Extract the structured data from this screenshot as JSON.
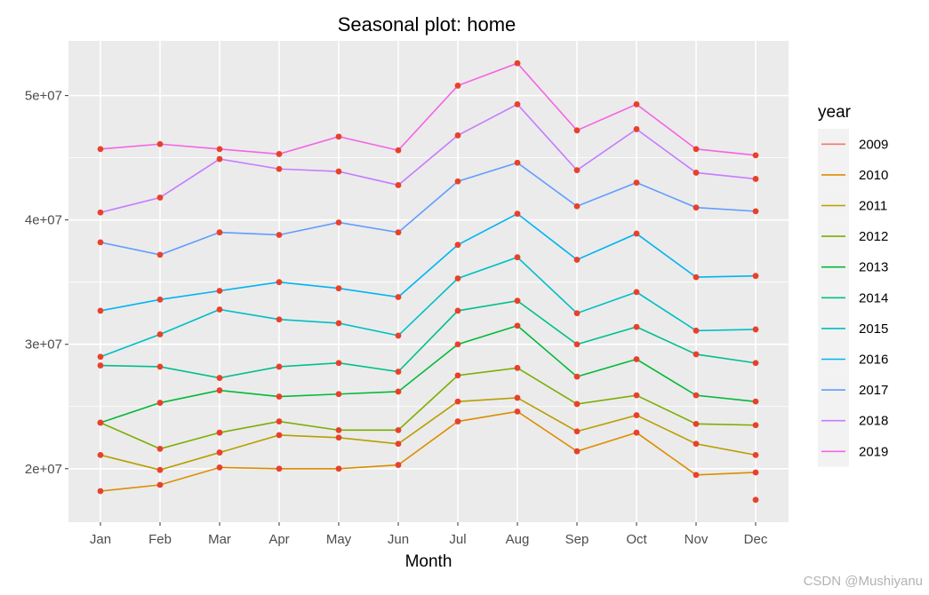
{
  "chart_data": {
    "type": "line",
    "title": "Seasonal plot: home",
    "xlabel": "Month",
    "ylabel": "",
    "categories": [
      "Jan",
      "Feb",
      "Mar",
      "Apr",
      "May",
      "Jun",
      "Jul",
      "Aug",
      "Sep",
      "Oct",
      "Nov",
      "Dec"
    ],
    "ylim": [
      15700000,
      54400000
    ],
    "yticks": [
      20000000,
      30000000,
      40000000,
      50000000
    ],
    "ytick_labels": [
      "2e+07",
      "3e+07",
      "4e+07",
      "5e+07"
    ],
    "grid": true,
    "legend": {
      "title": "year",
      "placement": "right"
    },
    "point_color": "#e8412b",
    "series": [
      {
        "name": "2009",
        "color": "#F8766D",
        "values": [
          null,
          null,
          null,
          null,
          null,
          null,
          null,
          null,
          null,
          null,
          null,
          17500000
        ]
      },
      {
        "name": "2010",
        "color": "#DE8C00",
        "values": [
          18200000,
          18700000,
          20100000,
          20000000,
          20000000,
          20300000,
          23800000,
          24600000,
          21400000,
          22900000,
          19500000,
          19700000
        ]
      },
      {
        "name": "2011",
        "color": "#B79F00",
        "values": [
          21100000,
          19900000,
          21300000,
          22700000,
          22500000,
          22000000,
          25400000,
          25700000,
          23000000,
          24300000,
          22000000,
          21100000
        ]
      },
      {
        "name": "2012",
        "color": "#7CAE00",
        "values": [
          23700000,
          21600000,
          22900000,
          23800000,
          23100000,
          23100000,
          27500000,
          28100000,
          25200000,
          25900000,
          23600000,
          23500000
        ]
      },
      {
        "name": "2013",
        "color": "#00BA38",
        "values": [
          23700000,
          25300000,
          26300000,
          25800000,
          26000000,
          26200000,
          30000000,
          31500000,
          27400000,
          28800000,
          25900000,
          25400000
        ]
      },
      {
        "name": "2014",
        "color": "#00C08B",
        "values": [
          28300000,
          28200000,
          27300000,
          28200000,
          28500000,
          27800000,
          32700000,
          33500000,
          30000000,
          31400000,
          29200000,
          28500000
        ]
      },
      {
        "name": "2015",
        "color": "#00BFC4",
        "values": [
          29000000,
          30800000,
          32800000,
          32000000,
          31700000,
          30700000,
          35300000,
          37000000,
          32500000,
          34200000,
          31100000,
          31200000
        ]
      },
      {
        "name": "2016",
        "color": "#00B4F0",
        "values": [
          32700000,
          33600000,
          34300000,
          35000000,
          34500000,
          33800000,
          38000000,
          40500000,
          36800000,
          38900000,
          35400000,
          35500000
        ]
      },
      {
        "name": "2017",
        "color": "#619CFF",
        "values": [
          38200000,
          37200000,
          39000000,
          38800000,
          39800000,
          39000000,
          43100000,
          44600000,
          41100000,
          43000000,
          41000000,
          40700000
        ]
      },
      {
        "name": "2018",
        "color": "#C77CFF",
        "values": [
          40600000,
          41800000,
          44900000,
          44100000,
          43900000,
          42800000,
          46800000,
          49300000,
          44000000,
          47300000,
          43800000,
          43300000
        ]
      },
      {
        "name": "2019",
        "color": "#F564E3",
        "values": [
          45700000,
          46100000,
          45700000,
          45300000,
          46700000,
          45600000,
          50800000,
          52600000,
          47200000,
          49300000,
          45700000,
          45200000
        ]
      }
    ]
  },
  "watermark": "CSDN @Mushiyanu"
}
